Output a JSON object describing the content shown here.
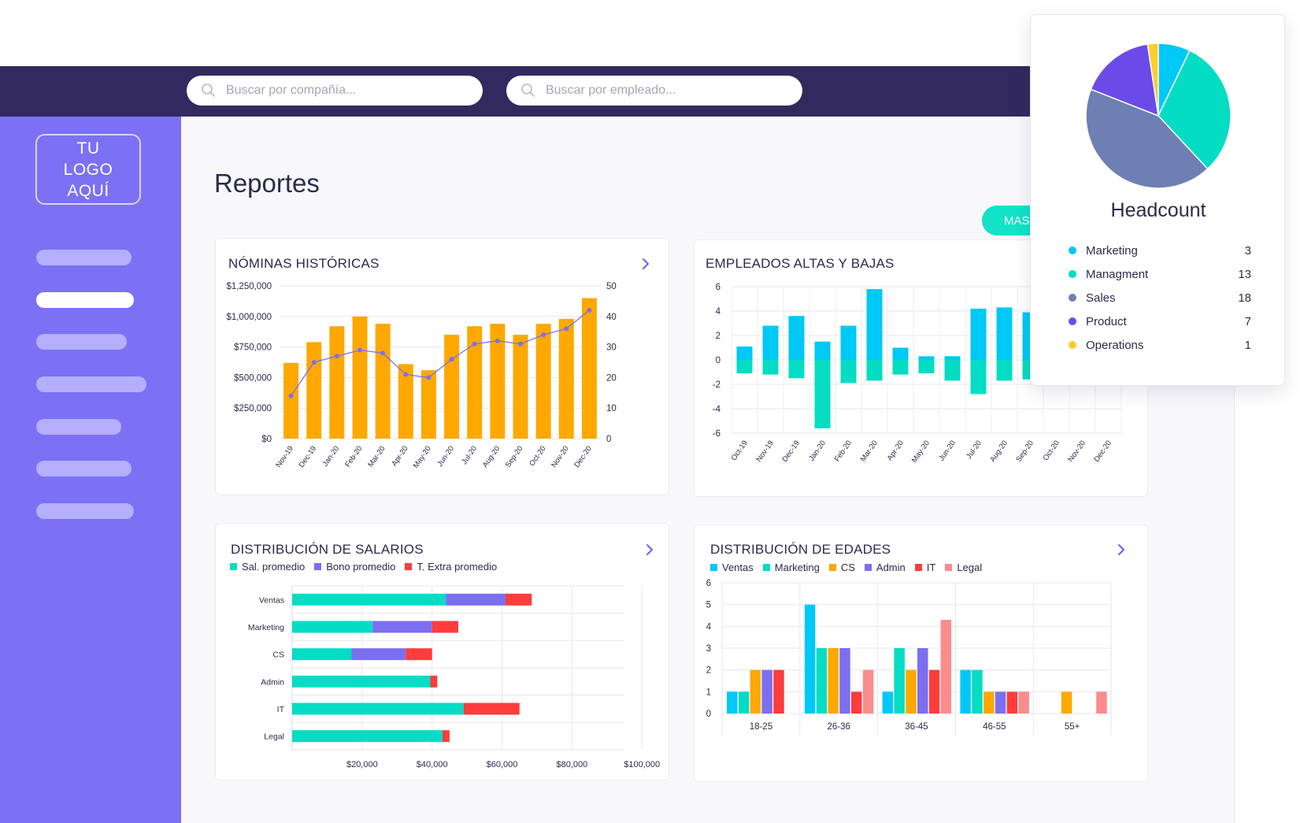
{
  "search": {
    "company_placeholder": "Buscar por compañía...",
    "employee_placeholder": "Buscar por empleado..."
  },
  "sidebar": {
    "logo_lines": [
      "TU",
      "LOGO",
      "AQUÍ"
    ],
    "active_index": 1
  },
  "page": {
    "title": "Reportes",
    "more_button": "MAS"
  },
  "colors": {
    "topbar": "#322a5e",
    "sidebar": "#7c70f5",
    "orange": "#fea800",
    "purple_line": "#7b6ff0",
    "cyan": "#00c8f4",
    "teal": "#04dcc4",
    "violet": "#7b6ff0",
    "red": "#fd3c3c",
    "pink": "#fb8c8c",
    "slate": "#6d7fb3",
    "yellow": "#fdce2b",
    "indigo": "#6a4be9"
  },
  "nominas": {
    "title": "NÓMINAS HISTÓRICAS",
    "chart_data": {
      "type": "bar",
      "categories": [
        "Nov-19",
        "Dec-19",
        "Jan-20",
        "Feb-20",
        "Mar-20",
        "Apr-20",
        "May-20",
        "Jun-20",
        "Jul-20",
        "Aug-20",
        "Sep-20",
        "Oct-20",
        "Nov-20",
        "Dec-20"
      ],
      "values": [
        620000,
        790000,
        920000,
        1000000,
        940000,
        610000,
        560000,
        850000,
        920000,
        940000,
        850000,
        940000,
        980000,
        1150000
      ],
      "line_values": [
        14,
        25,
        27,
        29,
        28,
        21,
        20,
        26,
        31,
        32,
        31,
        34,
        36,
        42
      ],
      "ylim": [
        0,
        1250000
      ],
      "yticks": [
        "$0",
        "$250,000",
        "$500,000",
        "$750,000",
        "$1,000,000",
        "$1,250,000"
      ],
      "y2lim": [
        0,
        50
      ],
      "y2ticks": [
        "0",
        "10",
        "20",
        "30",
        "40",
        "50"
      ],
      "grid": true
    }
  },
  "altas": {
    "title": "EMPLEADOS ALTAS Y BAJAS",
    "chart_data": {
      "type": "bar",
      "categories": [
        "Oct-19",
        "Nov-19",
        "Dec-19",
        "Jan-20",
        "Feb-20",
        "Mar-20",
        "Apr-20",
        "May-20",
        "Jun-20",
        "Jul-20",
        "Aug-20",
        "Sep-20",
        "Oct-20",
        "Nov-20",
        "Dec-20"
      ],
      "series": [
        {
          "values": [
            1.1,
            2.8,
            3.6,
            1.5,
            2.8,
            5.8,
            1.0,
            0.3,
            0.3,
            4.2,
            4.3,
            3.9,
            2.0,
            1.5,
            1.0
          ]
        },
        {
          "values": [
            -1.1,
            -1.2,
            -1.5,
            -5.6,
            -1.9,
            -1.7,
            -1.2,
            -1.1,
            -1.7,
            -2.8,
            -1.7,
            -1.6,
            -0.8,
            -0.9,
            -2.1
          ]
        }
      ],
      "ylim": [
        -6,
        6
      ],
      "yticks": [
        "-6",
        "-4",
        "-2",
        "0",
        "2",
        "4",
        "6"
      ],
      "grid": true
    }
  },
  "salarios": {
    "title": "DISTRIBUCIÓN DE SALARIOS",
    "chart_data": {
      "type": "bar",
      "orientation": "horizontal",
      "stacked": true,
      "categories": [
        "Ventas",
        "Marketing",
        "CS",
        "Admin",
        "IT",
        "Legal"
      ],
      "series": [
        {
          "name": "Sal. promedio",
          "values": [
            44000,
            23000,
            17000,
            39500,
            49000,
            43000
          ]
        },
        {
          "name": "Bono promedio",
          "values": [
            17000,
            17000,
            15500,
            0,
            0,
            0
          ]
        },
        {
          "name": "T. Extra promedio",
          "values": [
            7500,
            7500,
            7500,
            2000,
            16000,
            2000
          ]
        }
      ],
      "xlim": [
        0,
        95000
      ],
      "xticks": [
        "$20,000",
        "$40,000",
        "$60,000",
        "$80,000",
        "$100,000"
      ],
      "grid": true
    }
  },
  "edades": {
    "title": "DISTRIBUCIÓN DE EDADES",
    "chart_data": {
      "type": "bar",
      "categories": [
        "18-25",
        "26-36",
        "36-45",
        "46-55",
        "55+"
      ],
      "series": [
        {
          "name": "Ventas",
          "values": [
            1,
            5,
            1,
            2,
            0
          ]
        },
        {
          "name": "Marketing",
          "values": [
            1,
            3,
            3,
            2,
            0
          ]
        },
        {
          "name": "CS",
          "values": [
            2,
            3,
            2,
            1,
            1
          ]
        },
        {
          "name": "Admin",
          "values": [
            2,
            3,
            3,
            1,
            0
          ]
        },
        {
          "name": "IT",
          "values": [
            2,
            1,
            2,
            1,
            0
          ]
        },
        {
          "name": "Legal",
          "values": [
            0,
            2,
            4.3,
            1,
            1
          ]
        }
      ],
      "ylim": [
        0,
        6
      ],
      "yticks": [
        "0",
        "1",
        "2",
        "3",
        "4",
        "5",
        "6"
      ],
      "grid": true
    }
  },
  "headcount": {
    "title": "Headcount",
    "chart_data": {
      "type": "pie",
      "labels": [
        "Marketing",
        "Managment",
        "Sales",
        "Product",
        "Operations"
      ],
      "values": [
        3,
        13,
        18,
        7,
        1
      ]
    },
    "counts": [
      "3",
      "13",
      "18",
      "7",
      "1"
    ]
  }
}
